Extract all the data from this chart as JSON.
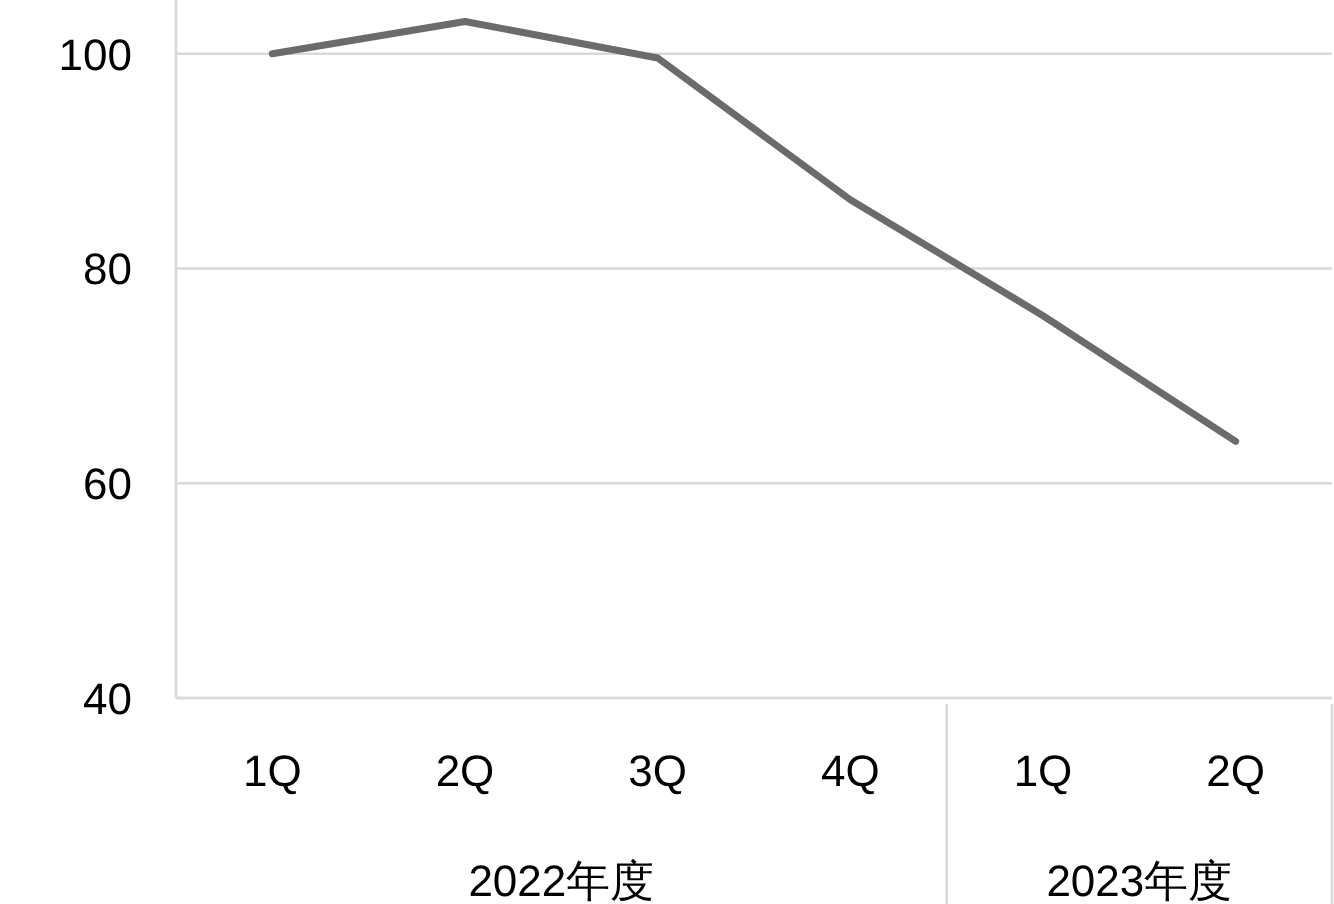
{
  "chart_data": {
    "type": "line",
    "categories": [
      "1Q",
      "2Q",
      "3Q",
      "4Q",
      "1Q",
      "2Q"
    ],
    "series": [
      {
        "color": "#6b6b6b",
        "values": [
          100,
          103,
          99.6,
          86.4,
          75.6,
          63.9
        ]
      }
    ],
    "ylim": [
      40,
      105
    ],
    "yticks": [
      40,
      60,
      80,
      100
    ],
    "grid": "y",
    "marker": "none",
    "line_style": "solid",
    "annotations": [
      "2022年度",
      "2023年度"
    ]
  }
}
